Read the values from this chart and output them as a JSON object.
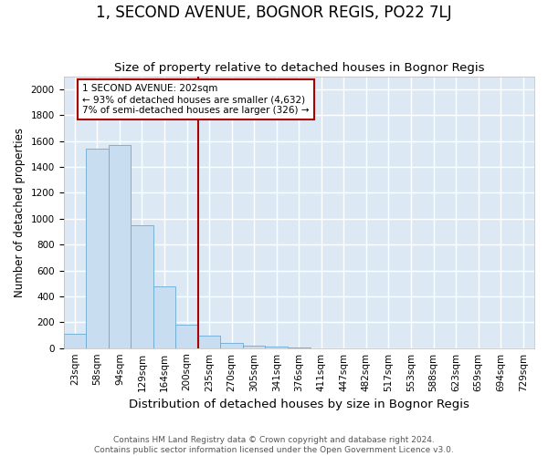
{
  "title": "1, SECOND AVENUE, BOGNOR REGIS, PO22 7LJ",
  "subtitle": "Size of property relative to detached houses in Bognor Regis",
  "xlabel": "Distribution of detached houses by size in Bognor Regis",
  "ylabel": "Number of detached properties",
  "footer_line1": "Contains HM Land Registry data © Crown copyright and database right 2024.",
  "footer_line2": "Contains public sector information licensed under the Open Government Licence v3.0.",
  "bar_values": [
    110,
    1540,
    1570,
    950,
    480,
    180,
    95,
    40,
    20,
    10,
    5
  ],
  "n_total_bins": 21,
  "bin_labels": [
    "23sqm",
    "58sqm",
    "94sqm",
    "129sqm",
    "164sqm",
    "200sqm",
    "235sqm",
    "270sqm",
    "305sqm",
    "341sqm",
    "376sqm",
    "411sqm",
    "447sqm",
    "482sqm",
    "517sqm",
    "553sqm",
    "588sqm",
    "623sqm",
    "659sqm",
    "694sqm",
    "729sqm"
  ],
  "bar_color": "#c9ddf0",
  "bar_edge_color": "#6aaad4",
  "plot_bg_color": "#dce9f5",
  "fig_bg_color": "#ffffff",
  "grid_color": "#ffffff",
  "vline_color": "#aa0000",
  "vline_x": 5.5,
  "annotation_text": "1 SECOND AVENUE: 202sqm\n← 93% of detached houses are smaller (4,632)\n7% of semi-detached houses are larger (326) →",
  "annotation_box_color": "#aa0000",
  "ylim": [
    0,
    2100
  ],
  "yticks": [
    0,
    200,
    400,
    600,
    800,
    1000,
    1200,
    1400,
    1600,
    1800,
    2000
  ],
  "title_fontsize": 12,
  "subtitle_fontsize": 9.5,
  "xlabel_fontsize": 9.5,
  "ylabel_fontsize": 8.5,
  "tick_fontsize": 7.5,
  "annot_fontsize": 7.5,
  "footer_fontsize": 6.5
}
